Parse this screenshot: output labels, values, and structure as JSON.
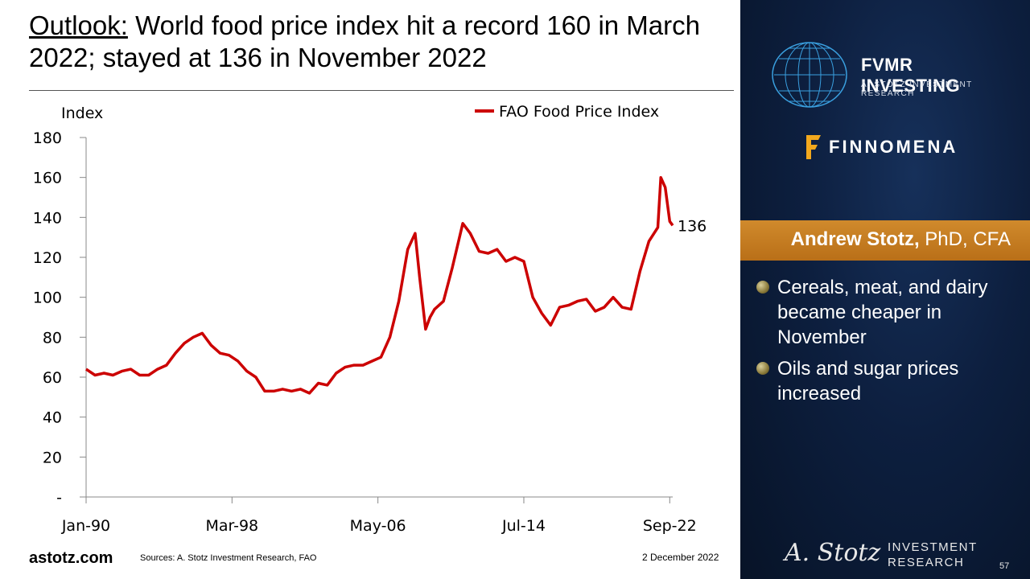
{
  "slide": {
    "title_lead": "Outlook:",
    "title_rest": " World food price index hit a record 160 in March 2022; stayed at 136 in November 2022",
    "site": "astotz.com",
    "sources": "Sources: A. Stotz Investment Research, FAO",
    "date": "2 December 2022",
    "page": "57"
  },
  "sidebar": {
    "fvmr_title": "FVMR INVESTING",
    "fvmr_sub": "A. STOTZ INVESTMENT RESEARCH",
    "finnomena": "FINNOMENA",
    "author_name": "Andrew Stotz,",
    "author_cred": " PhD, CFA",
    "bullets": [
      "Cereals, meat, and dairy became cheaper in November",
      "Oils and sugar prices increased"
    ],
    "brand_line1": "INVESTMENT",
    "brand_line2": "RESEARCH",
    "signature": "A. Stotz"
  },
  "colors": {
    "series": "#cc0000",
    "accent": "#c47a22",
    "panel": "#0d1f3f"
  },
  "chart_data": {
    "type": "line",
    "ylabel": "Index",
    "ylim": [
      0,
      180
    ],
    "yticks": [
      0,
      20,
      40,
      60,
      80,
      100,
      120,
      140,
      160,
      180
    ],
    "ytick_labels": [
      "-",
      "20",
      "40",
      "60",
      "80",
      "100",
      "120",
      "140",
      "160",
      "180"
    ],
    "xlim": [
      "1990-01",
      "2022-11"
    ],
    "xtick_labels": [
      "Jan-90",
      "Mar-98",
      "May-06",
      "Jul-14",
      "Sep-22"
    ],
    "xtick_dates": [
      "1990-01",
      "1998-03",
      "2006-05",
      "2014-07",
      "2022-09"
    ],
    "legend_position": "top-right",
    "end_label": "136",
    "series": [
      {
        "name": "FAO Food Price Index",
        "x": [
          "1990-01",
          "1990-07",
          "1991-01",
          "1991-07",
          "1992-01",
          "1992-07",
          "1993-01",
          "1993-07",
          "1994-01",
          "1994-07",
          "1995-01",
          "1995-07",
          "1996-01",
          "1996-07",
          "1997-01",
          "1997-07",
          "1998-01",
          "1998-07",
          "1999-01",
          "1999-07",
          "2000-01",
          "2000-07",
          "2001-01",
          "2001-07",
          "2002-01",
          "2002-07",
          "2003-01",
          "2003-07",
          "2004-01",
          "2004-07",
          "2005-01",
          "2005-07",
          "2006-01",
          "2006-07",
          "2007-01",
          "2007-07",
          "2008-01",
          "2008-06",
          "2008-09",
          "2009-01",
          "2009-04",
          "2009-07",
          "2010-01",
          "2010-07",
          "2011-02",
          "2011-07",
          "2012-01",
          "2012-07",
          "2013-01",
          "2013-07",
          "2014-01",
          "2014-07",
          "2015-01",
          "2015-07",
          "2016-01",
          "2016-07",
          "2017-01",
          "2017-07",
          "2018-01",
          "2018-07",
          "2019-01",
          "2019-07",
          "2020-01",
          "2020-07",
          "2021-01",
          "2021-07",
          "2022-01",
          "2022-03",
          "2022-06",
          "2022-09",
          "2022-11"
        ],
        "y": [
          64,
          61,
          62,
          61,
          63,
          64,
          61,
          61,
          64,
          66,
          72,
          77,
          80,
          82,
          76,
          72,
          71,
          68,
          63,
          60,
          53,
          53,
          54,
          53,
          54,
          52,
          57,
          56,
          62,
          65,
          66,
          66,
          68,
          70,
          80,
          98,
          124,
          132,
          110,
          84,
          90,
          94,
          98,
          115,
          137,
          132,
          123,
          122,
          124,
          118,
          120,
          118,
          100,
          92,
          86,
          95,
          96,
          98,
          99,
          93,
          95,
          100,
          95,
          94,
          113,
          128,
          135,
          160,
          155,
          138,
          136
        ]
      }
    ]
  }
}
